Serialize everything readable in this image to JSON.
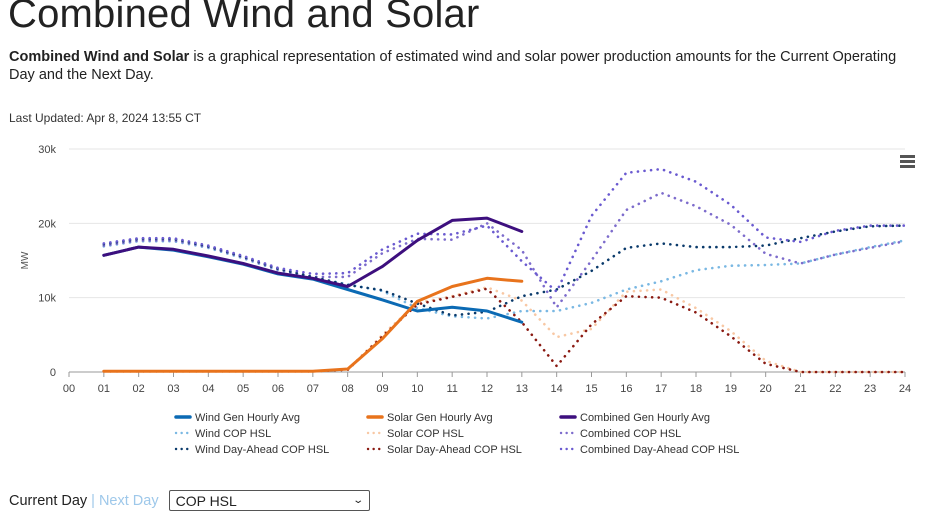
{
  "title": "Combined Wind and Solar",
  "intro": {
    "bold": "Combined Wind and Solar",
    "text": " is a graphical representation of estimated wind and solar power production amounts for the Current Operating Day and the Next Day."
  },
  "last_updated": "Last Updated: Apr 8, 2024 13:55 CT",
  "controls": {
    "current_day": "Current Day",
    "separator": "|",
    "next_day": "Next Day",
    "select_value": "COP HSL"
  },
  "chart_data": {
    "type": "line",
    "ylabel": "MW",
    "ylim": [
      0,
      30000
    ],
    "xlim": [
      0,
      24
    ],
    "yticks": [
      {
        "value": 0,
        "label": "0"
      },
      {
        "value": 10000,
        "label": "10k"
      },
      {
        "value": 20000,
        "label": "20k"
      },
      {
        "value": 30000,
        "label": "30k"
      }
    ],
    "xticks": [
      "00",
      "01",
      "02",
      "03",
      "04",
      "05",
      "06",
      "07",
      "08",
      "09",
      "10",
      "11",
      "12",
      "13",
      "14",
      "15",
      "16",
      "17",
      "18",
      "19",
      "20",
      "21",
      "22",
      "23",
      "24"
    ],
    "grid": true,
    "legend_position": "bottom",
    "colors": {
      "wind": "#0b6ab4",
      "solar": "#e8731c",
      "combined": "#3d0f7e",
      "wind_cop": "#7ab8e3",
      "solar_cop": "#f8c8a4",
      "combined_cop": "#7d6ccc",
      "wind_da": "#0a3a6b",
      "solar_da": "#8a1a12",
      "combined_da": "#6a5ad0"
    },
    "series": [
      {
        "name": "Wind Gen Hourly Avg",
        "style": "solid",
        "color_key": "wind",
        "x": [
          1,
          2,
          3,
          4,
          5,
          6,
          7,
          8,
          9,
          10,
          11,
          12,
          13
        ],
        "y": [
          15700,
          16800,
          16400,
          15500,
          14500,
          13200,
          12500,
          11100,
          9700,
          8200,
          8700,
          8200,
          6700
        ]
      },
      {
        "name": "Solar Gen Hourly Avg",
        "style": "solid",
        "color_key": "solar",
        "x": [
          1,
          2,
          3,
          4,
          5,
          6,
          7,
          8,
          9,
          10,
          11,
          12,
          13
        ],
        "y": [
          100,
          100,
          100,
          100,
          100,
          100,
          100,
          400,
          4500,
          9500,
          11500,
          12600,
          12200
        ]
      },
      {
        "name": "Combined Gen Hourly Avg",
        "style": "solid",
        "color_key": "combined",
        "x": [
          1,
          2,
          3,
          4,
          5,
          6,
          7,
          8,
          9,
          10,
          11,
          12,
          13
        ],
        "y": [
          15700,
          16800,
          16500,
          15600,
          14600,
          13300,
          12600,
          11500,
          14200,
          17700,
          20400,
          20700,
          18900
        ]
      },
      {
        "name": "Wind COP HSL",
        "style": "dotted",
        "color_key": "wind_cop",
        "x": [
          1,
          2,
          3,
          4,
          5,
          6,
          7,
          8,
          9,
          10,
          11,
          12,
          13,
          14,
          15,
          16,
          17,
          18,
          19,
          20,
          21,
          22,
          23,
          24
        ],
        "y": [
          16900,
          17600,
          17600,
          16700,
          15300,
          13700,
          12700,
          11800,
          10900,
          8600,
          7500,
          7200,
          8200,
          8200,
          9300,
          11100,
          12200,
          13700,
          14300,
          14400,
          14600,
          15800,
          16800,
          17700
        ]
      },
      {
        "name": "Solar COP HSL",
        "style": "dotted",
        "color_key": "solar_cop",
        "x": [
          1,
          2,
          3,
          4,
          5,
          6,
          7,
          8,
          9,
          10,
          11,
          12,
          13,
          14,
          15,
          16,
          17,
          18,
          19,
          20,
          21,
          22,
          23,
          24
        ],
        "y": [
          100,
          100,
          100,
          100,
          100,
          100,
          100,
          300,
          5000,
          9300,
          10200,
          11400,
          9600,
          4700,
          5800,
          10800,
          11100,
          8600,
          5500,
          1500,
          0,
          0,
          0,
          0
        ]
      },
      {
        "name": "Combined COP HSL",
        "style": "dotted",
        "color_key": "combined_cop",
        "x": [
          1,
          2,
          3,
          4,
          5,
          6,
          7,
          8,
          9,
          10,
          11,
          12,
          13,
          14,
          15,
          16,
          17,
          18,
          19,
          20,
          21,
          22,
          23,
          24
        ],
        "y": [
          17000,
          17700,
          17700,
          16800,
          15400,
          13800,
          12800,
          12800,
          16000,
          17900,
          17800,
          20000,
          16400,
          8700,
          15000,
          21800,
          24100,
          22300,
          19800,
          15900,
          14600,
          15800,
          16700,
          17600
        ]
      },
      {
        "name": "Wind Day-Ahead COP HSL",
        "style": "dotted",
        "color_key": "wind_da",
        "x": [
          1,
          2,
          3,
          4,
          5,
          6,
          7,
          8,
          9,
          10,
          11,
          12,
          13,
          14,
          15,
          16,
          17,
          18,
          19,
          20,
          21,
          22,
          23,
          24
        ],
        "y": [
          17200,
          17900,
          17900,
          16900,
          15500,
          13900,
          12800,
          11700,
          11000,
          9200,
          7600,
          8100,
          10200,
          11100,
          13600,
          16700,
          17300,
          16800,
          16800,
          17000,
          18000,
          18900,
          19600,
          19700
        ]
      },
      {
        "name": "Solar Day-Ahead COP HSL",
        "style": "dotted",
        "color_key": "solar_da",
        "x": [
          1,
          2,
          3,
          4,
          5,
          6,
          7,
          8,
          9,
          10,
          11,
          12,
          13,
          14,
          15,
          16,
          17,
          18,
          19,
          20,
          21,
          22,
          23,
          24
        ],
        "y": [
          100,
          100,
          100,
          100,
          100,
          100,
          100,
          300,
          4800,
          9100,
          10100,
          11200,
          6700,
          800,
          6400,
          10200,
          10000,
          8000,
          4800,
          1100,
          0,
          0,
          0,
          0
        ]
      },
      {
        "name": "Combined Day-Ahead COP HSL",
        "style": "dotted",
        "color_key": "combined_da",
        "x": [
          1,
          2,
          3,
          4,
          5,
          6,
          7,
          8,
          9,
          10,
          11,
          12,
          13,
          14,
          15,
          16,
          17,
          18,
          19,
          20,
          21,
          22,
          23,
          24
        ],
        "y": [
          17300,
          18000,
          18000,
          17000,
          15600,
          14000,
          13200,
          13300,
          16500,
          18600,
          18500,
          19700,
          14900,
          10800,
          21000,
          26800,
          27300,
          25600,
          22500,
          18100,
          17500,
          19000,
          19700,
          19700
        ]
      }
    ]
  }
}
